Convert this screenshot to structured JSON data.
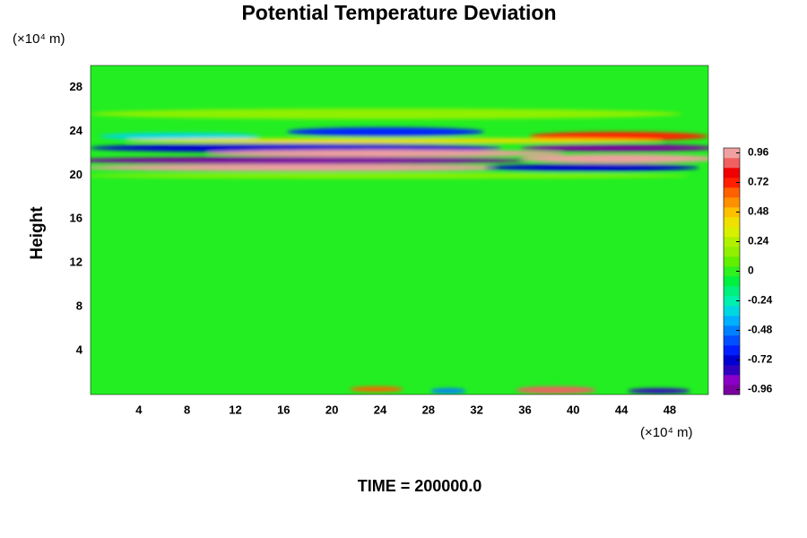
{
  "chart_data": {
    "type": "contour",
    "title": "Potential Temperature Deviation",
    "y_label": "Height",
    "y_unit": "(×10⁴ m)",
    "x_unit": "(×10⁴ m)",
    "footer": "TIME = 200000.0",
    "xlim": [
      0,
      51.2
    ],
    "xticks": [
      4,
      8,
      12,
      16,
      20,
      24,
      28,
      32,
      36,
      40,
      44,
      48
    ],
    "ylim": [
      0,
      30
    ],
    "yticks": [
      4,
      8,
      12,
      16,
      20,
      24,
      28
    ],
    "colorbar": {
      "lim": [
        -1,
        1
      ],
      "ticks": [
        -0.96,
        -0.72,
        -0.48,
        -0.24,
        0,
        0.24,
        0.48,
        0.72,
        0.96
      ],
      "colors": [
        "#7a00a0",
        "#8a00c8",
        "#3000c0",
        "#0000d0",
        "#0020ff",
        "#0050ff",
        "#0080ff",
        "#00b0ff",
        "#00d8e0",
        "#00f0b0",
        "#00f080",
        "#00f040",
        "#30f020",
        "#60f000",
        "#90f000",
        "#b0f000",
        "#d8f000",
        "#f0e000",
        "#ffc000",
        "#ff9000",
        "#ff6000",
        "#ff2000",
        "#f00000",
        "#f06060",
        "#f0a0a0"
      ]
    }
  }
}
